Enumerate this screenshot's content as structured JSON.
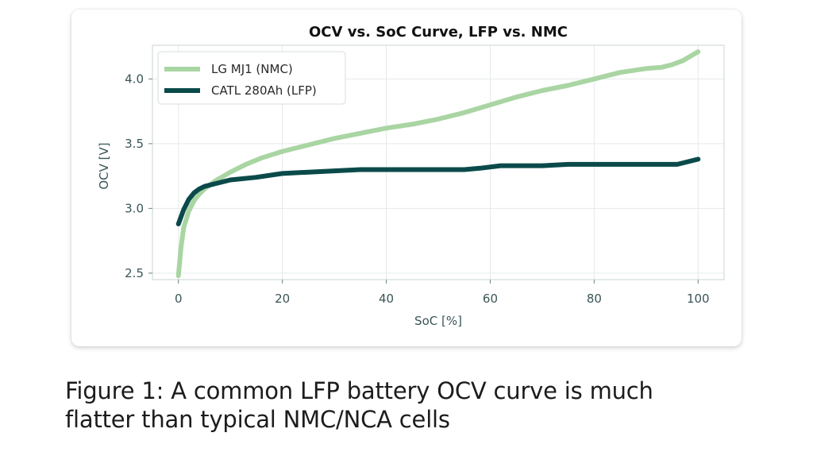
{
  "chart_data": {
    "type": "line",
    "title": "OCV vs. SoC Curve, LFP vs. NMC",
    "xlabel": "SoC [%]",
    "ylabel": "OCV [V]",
    "xlim": [
      -5,
      105
    ],
    "ylim": [
      2.45,
      4.26
    ],
    "xticks": [
      0,
      20,
      40,
      60,
      80,
      100
    ],
    "xtick_labels": [
      "0",
      "20",
      "40",
      "60",
      "80",
      "100"
    ],
    "yticks": [
      2.5,
      3.0,
      3.5,
      4.0
    ],
    "ytick_labels": [
      "2.5",
      "3.0",
      "3.5",
      "4.0"
    ],
    "grid": true,
    "legend_position": "top-left",
    "series": [
      {
        "name": "LG MJ1 (NMC)",
        "color": "#a9d5a3",
        "x": [
          0,
          0.5,
          1,
          2,
          3,
          4,
          5,
          7,
          10,
          13,
          16,
          20,
          25,
          30,
          35,
          40,
          45,
          50,
          55,
          60,
          65,
          70,
          75,
          80,
          85,
          90,
          93,
          95,
          97,
          100
        ],
        "y": [
          2.48,
          2.7,
          2.85,
          2.98,
          3.06,
          3.11,
          3.15,
          3.21,
          3.28,
          3.34,
          3.39,
          3.44,
          3.49,
          3.54,
          3.58,
          3.62,
          3.65,
          3.69,
          3.74,
          3.8,
          3.86,
          3.91,
          3.95,
          4.0,
          4.05,
          4.08,
          4.09,
          4.11,
          4.14,
          4.21
        ]
      },
      {
        "name": "CATL 280Ah (LFP)",
        "color": "#0b4a4a",
        "x": [
          0,
          1,
          2,
          3,
          4,
          5,
          7,
          10,
          15,
          20,
          25,
          30,
          35,
          40,
          45,
          50,
          55,
          58,
          62,
          65,
          70,
          75,
          80,
          85,
          90,
          96,
          100
        ],
        "y": [
          2.88,
          2.99,
          3.07,
          3.12,
          3.15,
          3.17,
          3.19,
          3.22,
          3.24,
          3.27,
          3.28,
          3.29,
          3.3,
          3.3,
          3.3,
          3.3,
          3.3,
          3.31,
          3.33,
          3.33,
          3.33,
          3.34,
          3.34,
          3.34,
          3.34,
          3.34,
          3.38
        ]
      }
    ]
  },
  "caption": {
    "line1": "Figure 1: A common LFP battery OCV curve is much",
    "line2": "flatter than typical NMC/NCA cells"
  }
}
